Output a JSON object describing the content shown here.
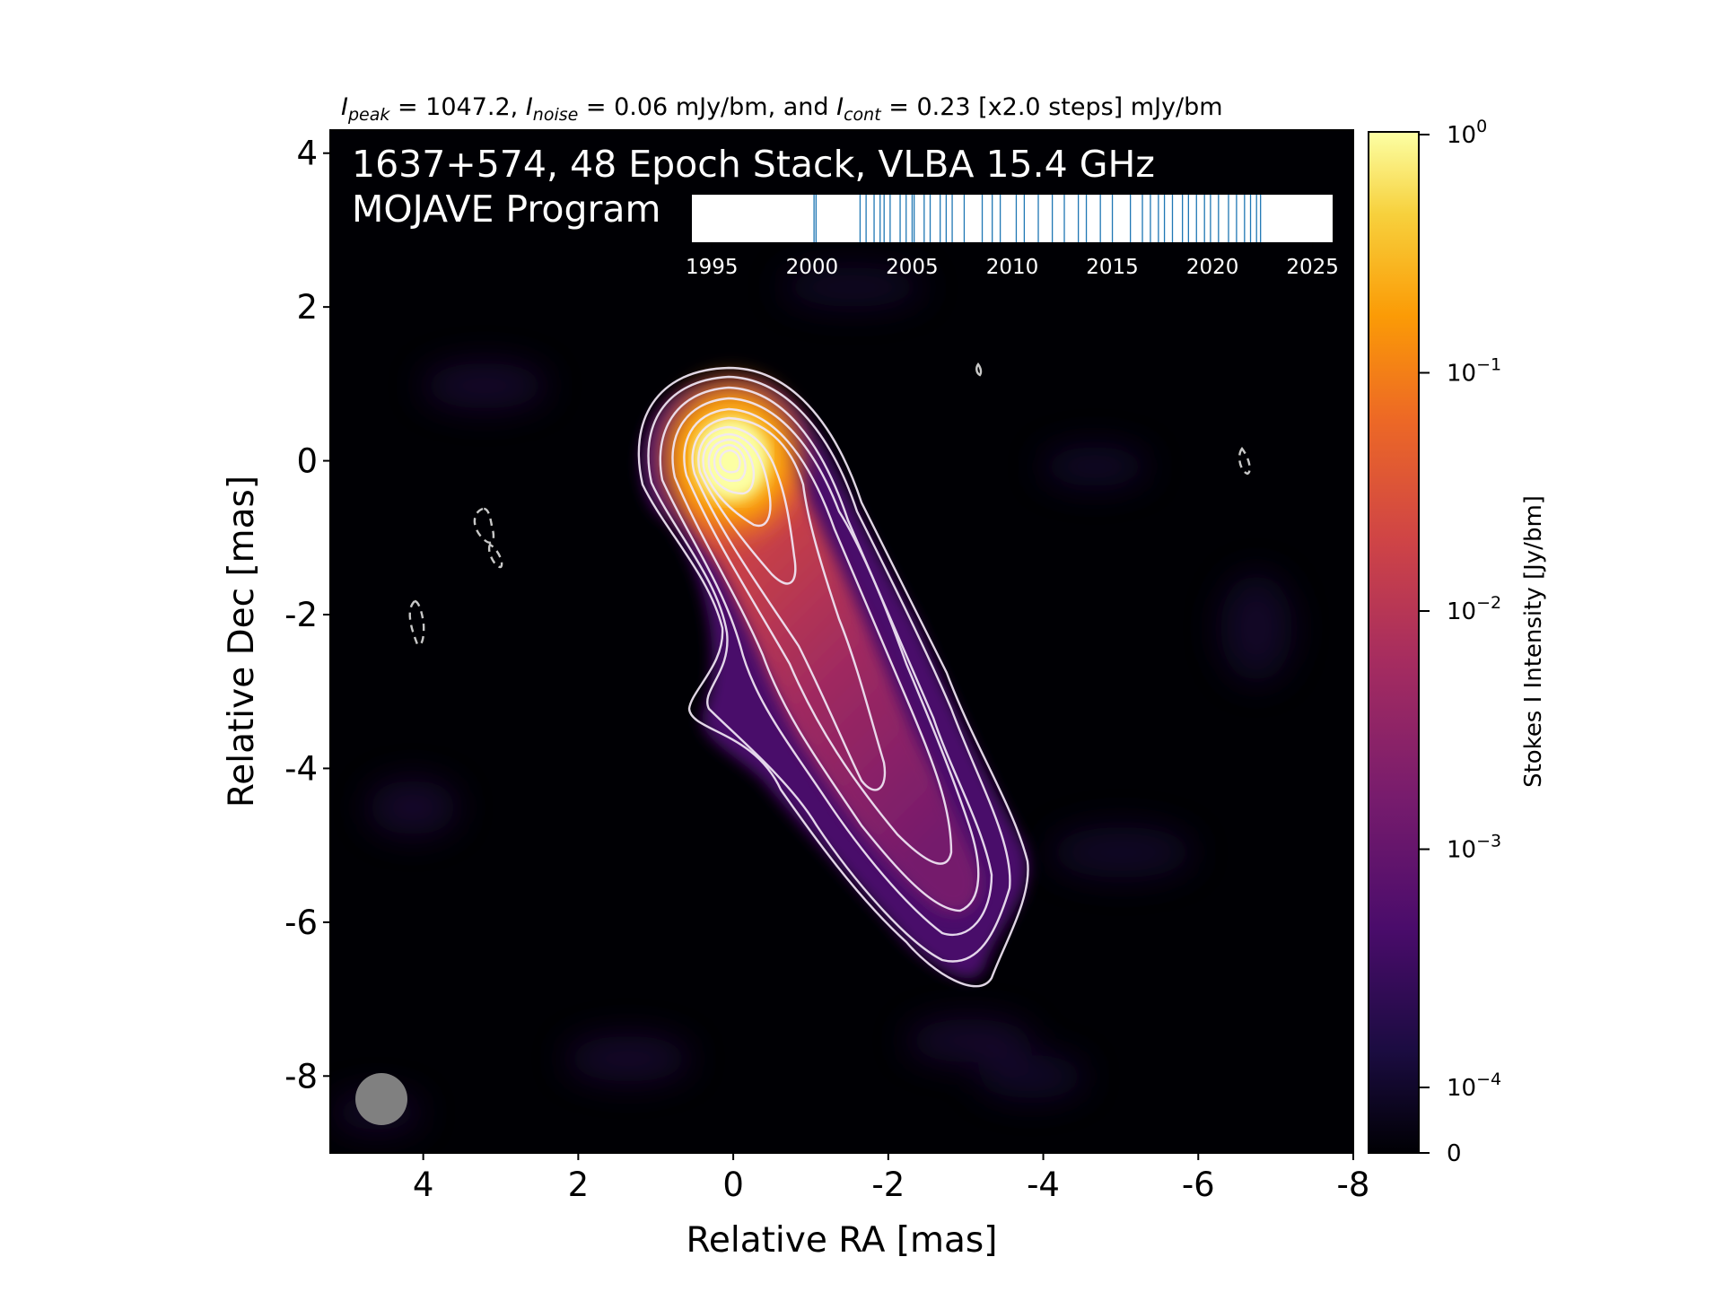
{
  "chart_data": {
    "type": "heatmap",
    "title_parts": {
      "peak_value": "1047.2",
      "noise_value": "0.06 mJy/bm",
      "cont_value": "0.23 [x2.0 steps] mJy/bm"
    },
    "overlay": {
      "line1": "1637+574, 48 Epoch Stack, VLBA 15.4 GHz",
      "line2": "MOJAVE Program"
    },
    "xlabel": "Relative RA [mas]",
    "ylabel": "Relative Dec [mas]",
    "xlim": [
      5.2,
      -8
    ],
    "ylim": [
      -9,
      4.3
    ],
    "x_ticks": [
      4,
      2,
      0,
      -2,
      -4,
      -6,
      -8
    ],
    "y_ticks": [
      4,
      2,
      0,
      -2,
      -4,
      -6,
      -8
    ],
    "colorbar": {
      "label": "Stokes I Intensity [Jy/bm]",
      "scale": "log",
      "ticks": [
        {
          "value": 1,
          "label": "10",
          "exp": "0"
        },
        {
          "value": 0.1,
          "label": "10",
          "exp": "−1"
        },
        {
          "value": 0.01,
          "label": "10",
          "exp": "−2"
        },
        {
          "value": 0.001,
          "label": "10",
          "exp": "−3"
        },
        {
          "value": 0.0001,
          "label": "10",
          "exp": "−4"
        },
        {
          "value": 0,
          "label": "0",
          "exp": ""
        }
      ]
    },
    "peak_position": [
      0,
      -0.15
    ],
    "beam": {
      "shape": "circle",
      "color": "#808080"
    },
    "epoch_timeline": {
      "xlim": [
        1994,
        2026
      ],
      "ticks": [
        1995,
        2000,
        2005,
        2010,
        2015,
        2020,
        2025
      ],
      "epochs": [
        2000.1,
        2000.2,
        2002.4,
        2002.7,
        2003.1,
        2003.4,
        2003.6,
        2003.9,
        2004.4,
        2004.7,
        2005.0,
        2005.1,
        2005.6,
        2005.9,
        2006.4,
        2006.7,
        2007.0,
        2007.6,
        2008.5,
        2009.0,
        2009.4,
        2010.2,
        2010.6,
        2011.3,
        2012.0,
        2012.6,
        2013.3,
        2013.7,
        2014.4,
        2015.0,
        2015.9,
        2016.5,
        2016.9,
        2017.3,
        2017.6,
        2018.0,
        2018.5,
        2018.8,
        2019.2,
        2019.6,
        2019.9,
        2020.3,
        2020.8,
        2021.2,
        2021.6,
        2021.9,
        2022.2,
        2022.4
      ]
    }
  }
}
